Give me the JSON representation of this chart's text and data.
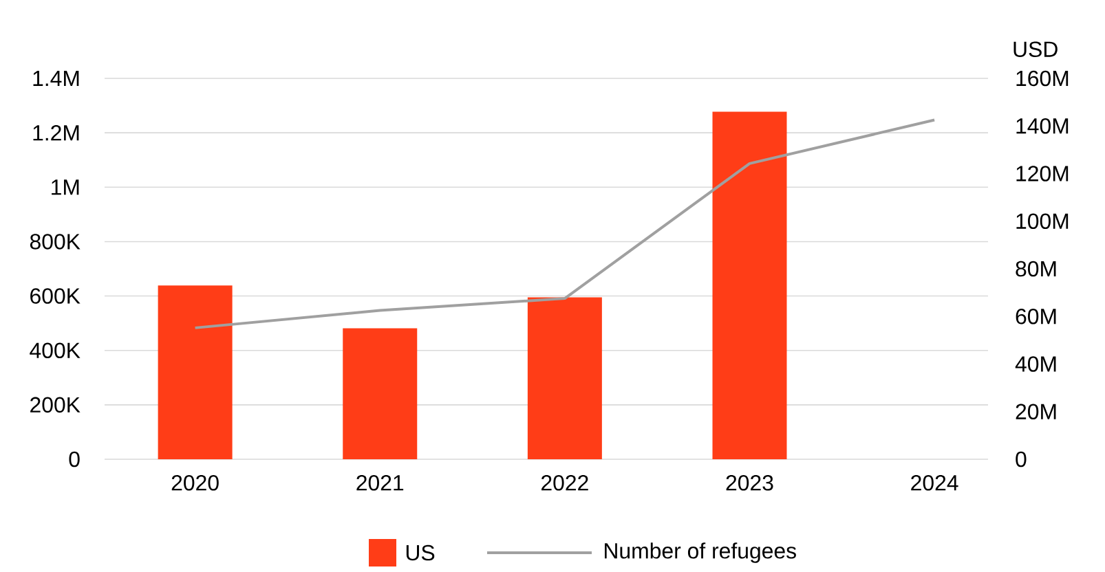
{
  "chart_data": {
    "type": "bar",
    "categories": [
      "2020",
      "2021",
      "2022",
      "2023",
      "2024"
    ],
    "series": [
      {
        "name": "US",
        "axis": "y2",
        "color": "#ff3d17",
        "values": [
          73000000,
          55000000,
          68000000,
          146000000,
          null
        ]
      },
      {
        "name": "Number of refugees",
        "type": "line",
        "color": "#a0a0a0",
        "values": [
          483000,
          547000,
          591000,
          1087000,
          1247000
        ]
      }
    ],
    "ylim": [
      0,
      1400000
    ],
    "yticks": [
      0,
      {
        "value": 200000,
        "label": "200K"
      },
      {
        "value": 400000,
        "label": "400K"
      },
      {
        "value": 600000,
        "label": "600K"
      },
      {
        "value": 800000,
        "label": "800K"
      },
      {
        "value": 1000000,
        "label": "1M"
      },
      {
        "value": 1200000,
        "label": "1.2M"
      },
      {
        "value": 1400000,
        "label": "1.4M"
      }
    ],
    "y2label": "USD",
    "y2lim": [
      0,
      160000000
    ],
    "y2ticks": [
      0,
      {
        "value": 20000000,
        "label": "20M"
      },
      {
        "value": 40000000,
        "label": "40M"
      },
      {
        "value": 60000000,
        "label": "60M"
      },
      {
        "value": 80000000,
        "label": "80M"
      },
      {
        "value": 100000000,
        "label": "100M"
      },
      {
        "value": 120000000,
        "label": "120M"
      },
      {
        "value": 140000000,
        "label": "140M"
      },
      {
        "value": 160000000,
        "label": "160M"
      }
    ],
    "grid": "y",
    "legend": "bottom",
    "marker": "none"
  }
}
